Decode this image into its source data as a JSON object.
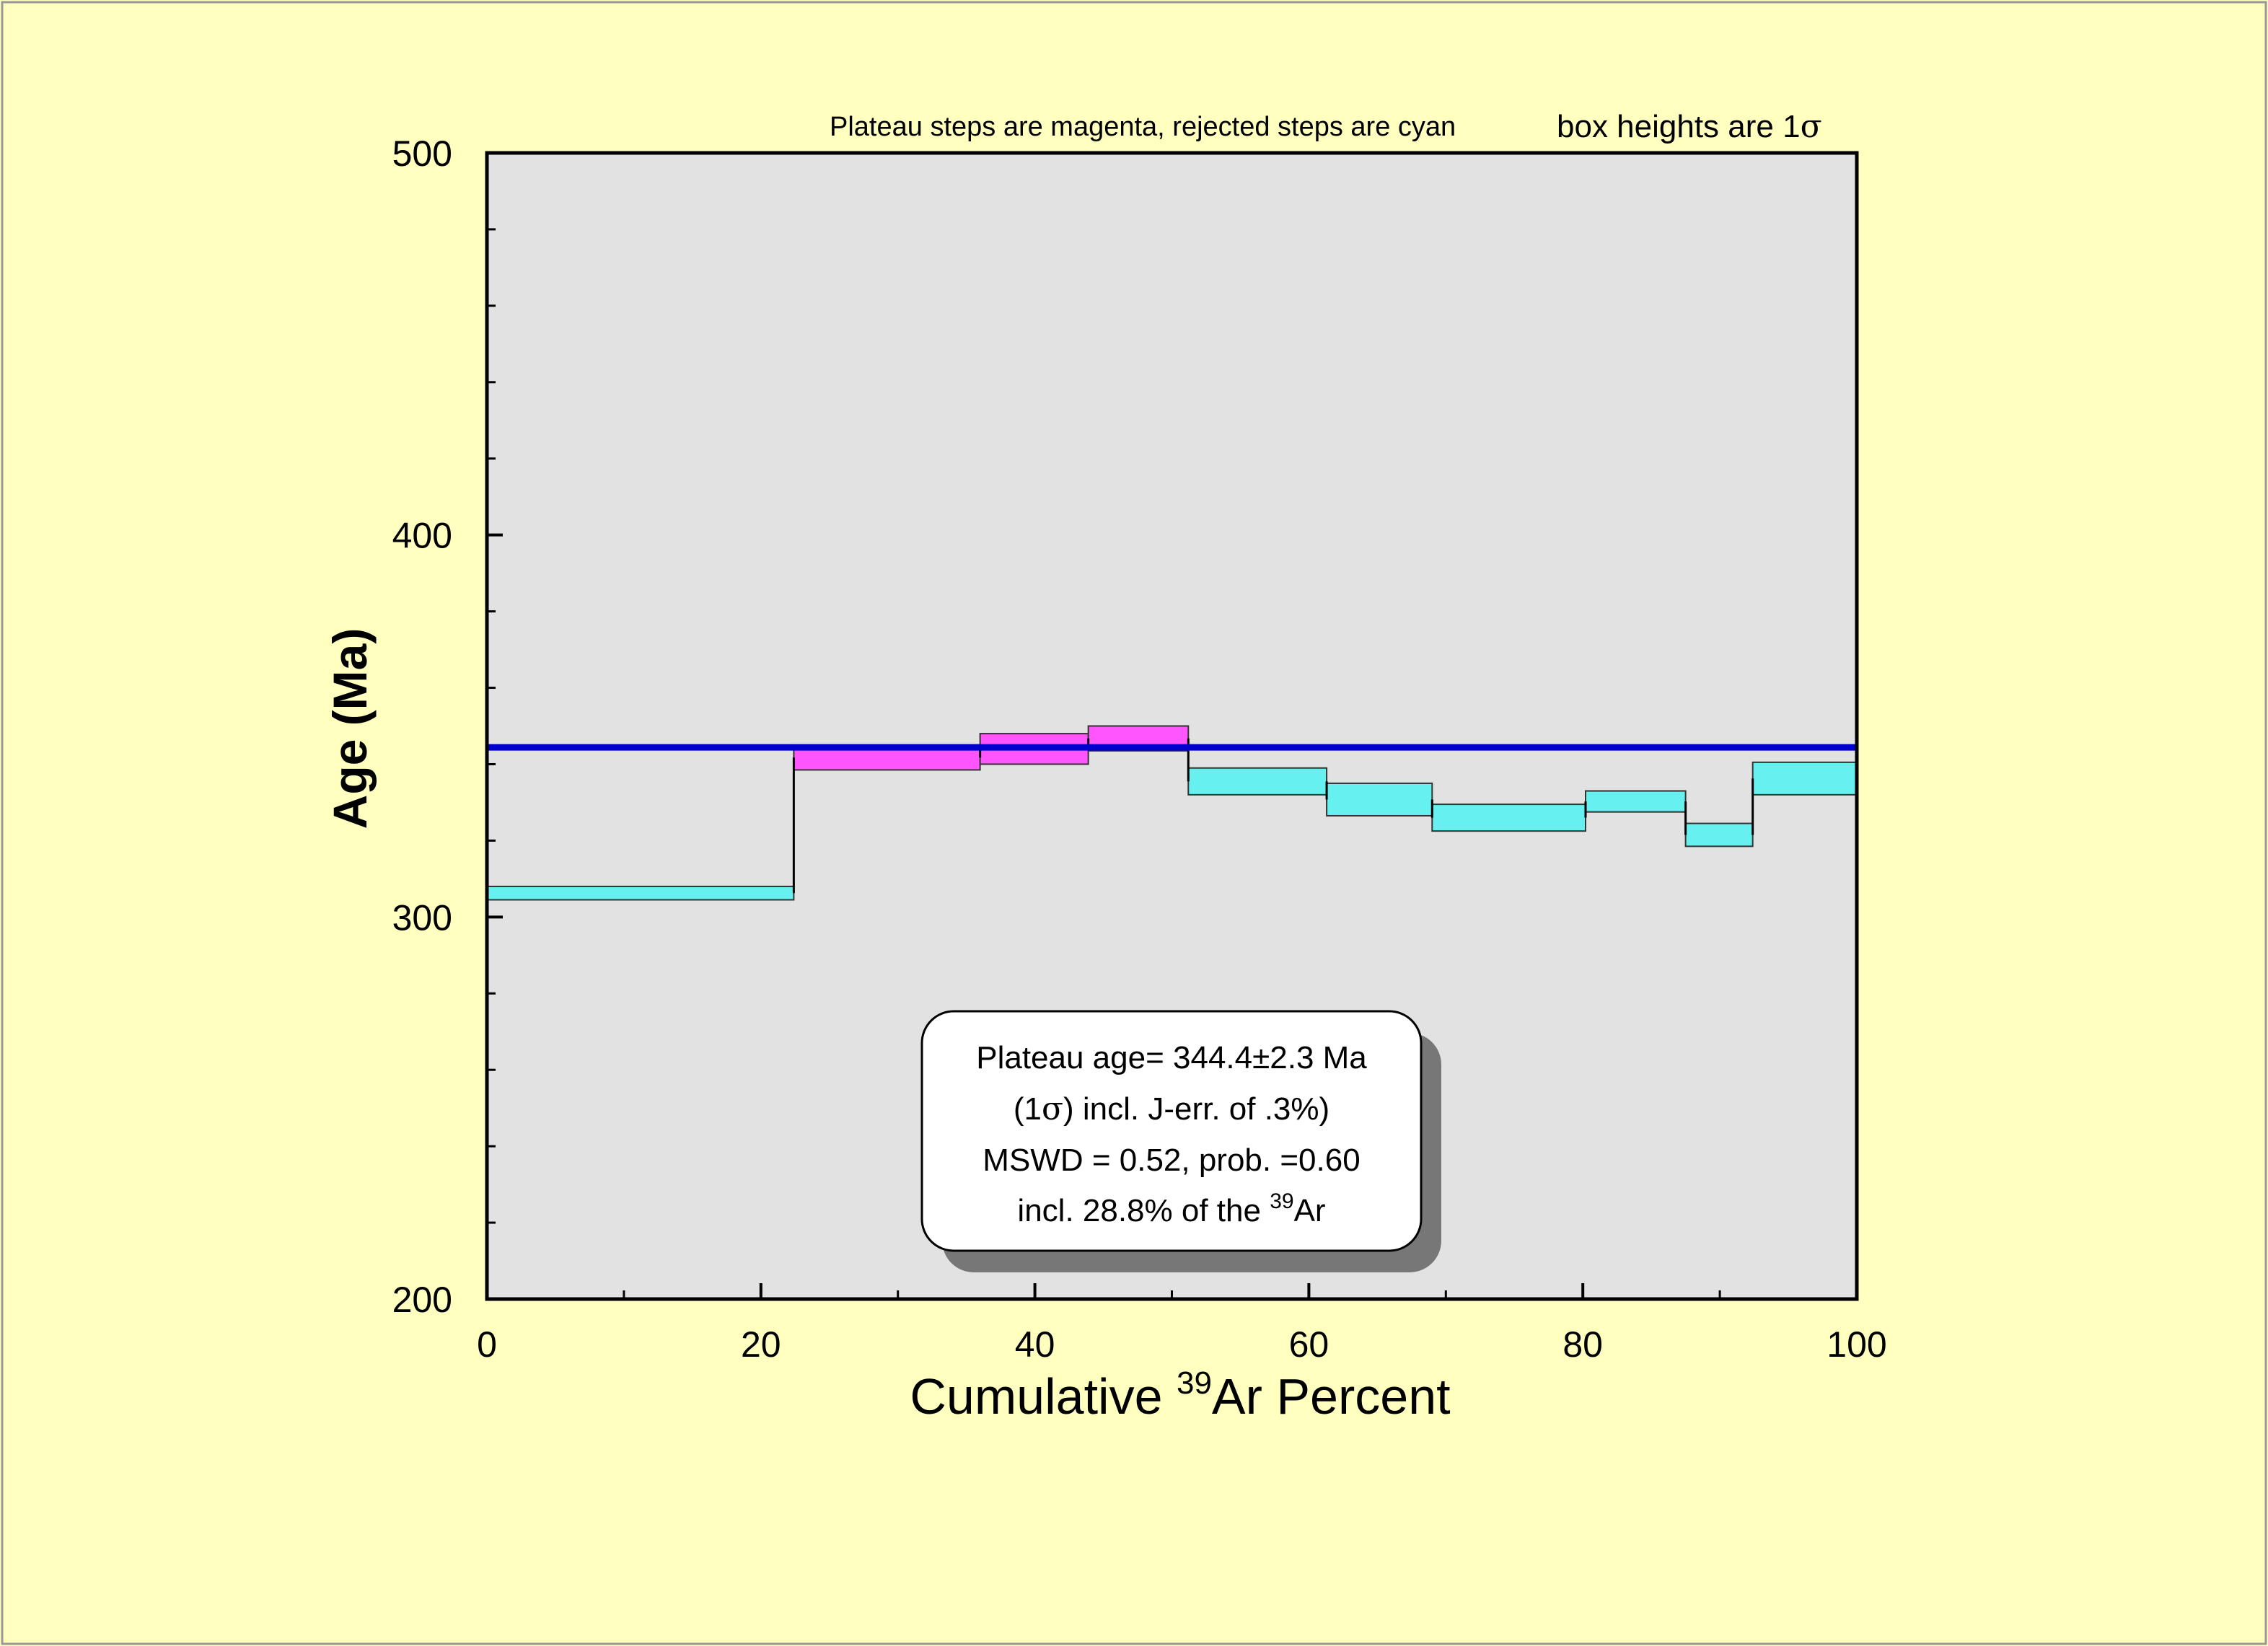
{
  "chart_data": {
    "type": "step",
    "note_left": "Plateau steps are magenta, rejected steps are cyan",
    "note_right": "box heights are 1",
    "note_right_symbol": "σ",
    "xlabel_prefix": "Cumulative ",
    "xlabel_sup": "39",
    "xlabel_suffix": "Ar Percent",
    "ylabel": "Age (Ma)",
    "xlim": [
      0,
      100
    ],
    "ylim": [
      200,
      500
    ],
    "x_ticks": [
      "0",
      "20",
      "40",
      "60",
      "80",
      "100"
    ],
    "y_ticks": [
      "200",
      "300",
      "400",
      "500"
    ],
    "plateau_age": 344.4,
    "plateau_color": "#0000cc",
    "accepted_color": "#ff55ff",
    "rejected_color": "#66f0f0",
    "background_color": "#ffffc0",
    "plot_bg_color": "#e2e2e2",
    "steps": [
      {
        "x0": 0.0,
        "x1": 22.4,
        "low": 304.5,
        "high": 308.0,
        "plateau": false
      },
      {
        "x0": 22.4,
        "x1": 36.0,
        "low": 338.5,
        "high": 345.0,
        "plateau": true
      },
      {
        "x0": 36.0,
        "x1": 43.9,
        "low": 340.0,
        "high": 348.0,
        "plateau": true
      },
      {
        "x0": 43.9,
        "x1": 51.2,
        "low": 343.5,
        "high": 350.0,
        "plateau": true
      },
      {
        "x0": 51.2,
        "x1": 61.3,
        "low": 332.0,
        "high": 339.0,
        "plateau": false
      },
      {
        "x0": 61.3,
        "x1": 69.0,
        "low": 326.5,
        "high": 335.0,
        "plateau": false
      },
      {
        "x0": 69.0,
        "x1": 80.2,
        "low": 322.5,
        "high": 329.5,
        "plateau": false
      },
      {
        "x0": 80.2,
        "x1": 87.5,
        "low": 327.5,
        "high": 333.0,
        "plateau": false
      },
      {
        "x0": 87.5,
        "x1": 92.4,
        "low": 318.5,
        "high": 324.5,
        "plateau": false
      },
      {
        "x0": 92.4,
        "x1": 100.0,
        "low": 332.0,
        "high": 340.5,
        "plateau": false
      }
    ],
    "annotation": {
      "line1": "Plateau age= 344.4±2.3 Ma",
      "line2_prefix": "(1",
      "line2_symbol": "σ",
      "line2_suffix": ") incl. J-err. of .3%)",
      "line3": "MSWD = 0.52, prob. =0.60",
      "line4_prefix": "incl. 28.8% of the ",
      "line4_sup": "39",
      "line4_suffix": "Ar"
    }
  }
}
